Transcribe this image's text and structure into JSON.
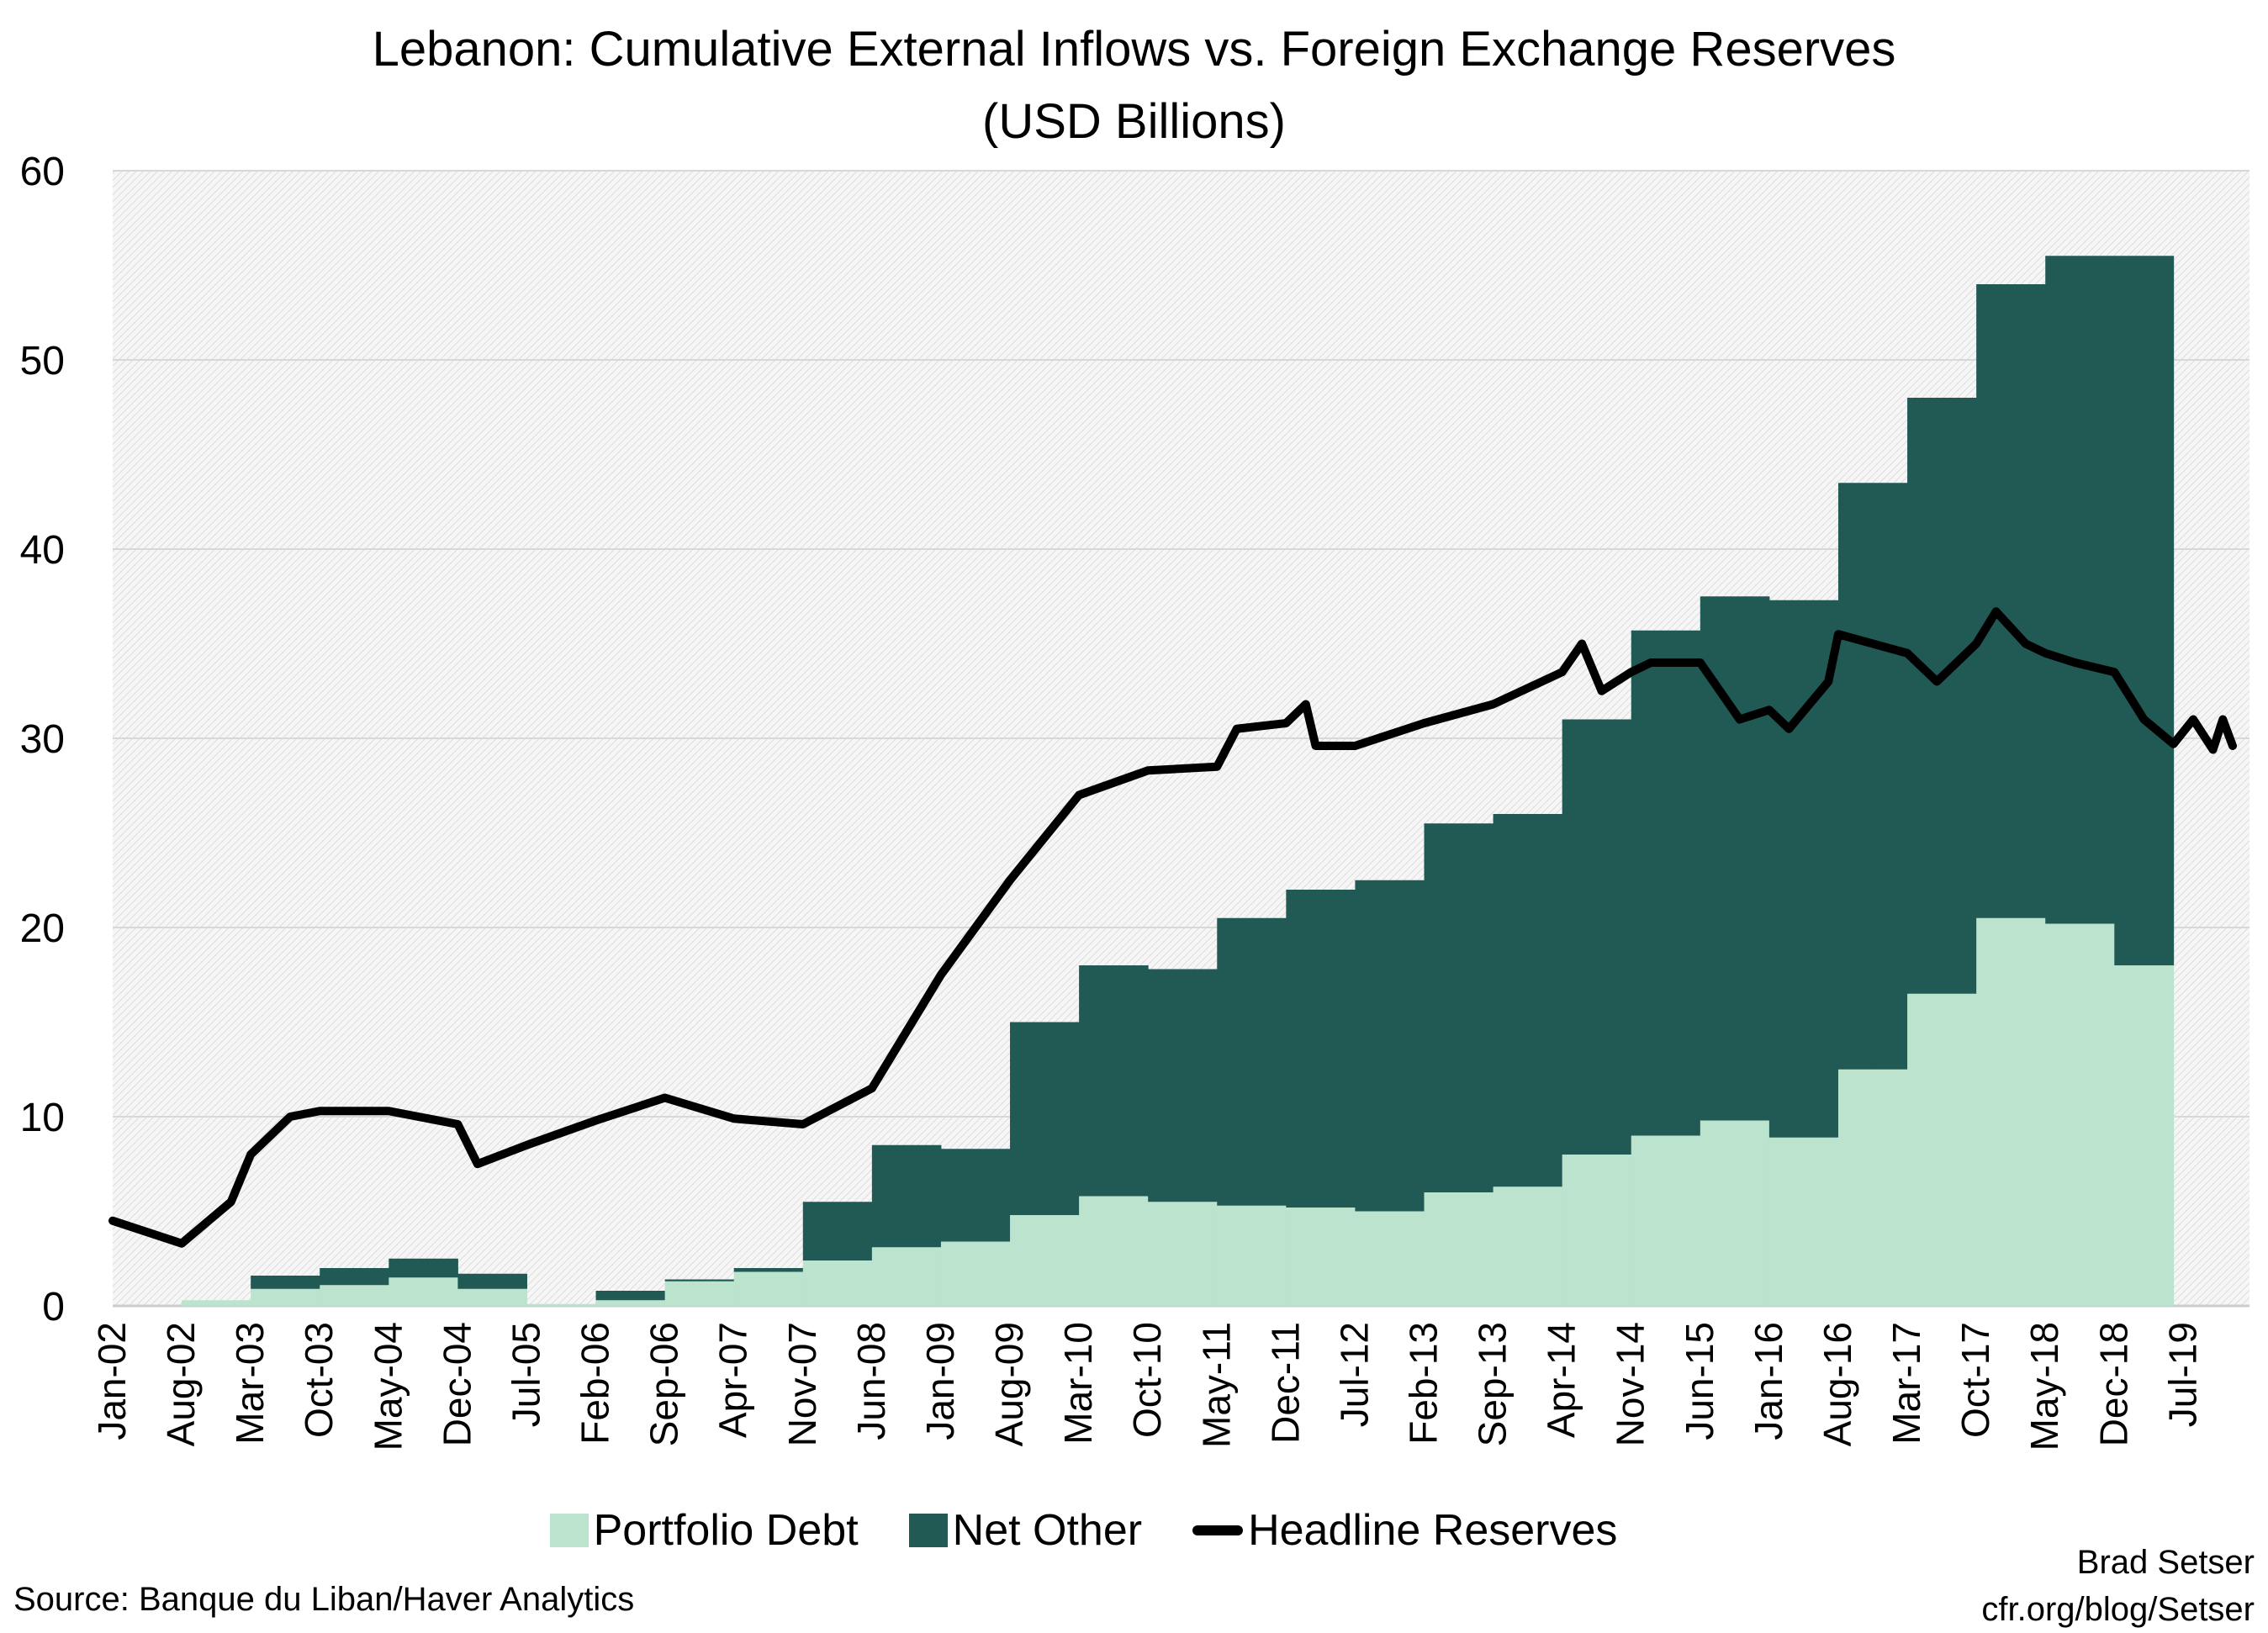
{
  "chart_data": {
    "type": "bar",
    "stacked": true,
    "title": "Lebanon: Cumulative External Inflows vs. Foreign Exchange Reserves",
    "subtitle": "(USD Billions)",
    "ylim": [
      0,
      60
    ],
    "yticks": [
      0,
      10,
      20,
      30,
      40,
      50,
      60
    ],
    "xlim": [
      "Jan-02",
      "Dec-19"
    ],
    "xticks": [
      "Jan-02",
      "Aug-02",
      "Mar-03",
      "Oct-03",
      "May-04",
      "Dec-04",
      "Jul-05",
      "Feb-06",
      "Sep-06",
      "Apr-07",
      "Nov-07",
      "Jun-08",
      "Jan-09",
      "Aug-09",
      "Mar-10",
      "Oct-10",
      "May-11",
      "Dec-11",
      "Jul-12",
      "Feb-13",
      "Sep-13",
      "Apr-14",
      "Nov-14",
      "Jun-15",
      "Jan-16",
      "Aug-16",
      "Mar-17",
      "Oct-17",
      "May-18",
      "Dec-18",
      "Jul-19"
    ],
    "grid": true,
    "legend_position": "bottom",
    "bar_dates": [
      "Jan-02",
      "Aug-02",
      "Mar-03",
      "Oct-03",
      "May-04",
      "Dec-04",
      "Jul-05",
      "Feb-06",
      "Sep-06",
      "Apr-07",
      "Nov-07",
      "Jun-08",
      "Jan-09",
      "Aug-09",
      "Mar-10",
      "Oct-10",
      "May-11",
      "Dec-11",
      "Jul-12",
      "Feb-13",
      "Sep-13",
      "Apr-14",
      "Nov-14",
      "Jun-15",
      "Jan-16",
      "Aug-16",
      "Mar-17",
      "Oct-17",
      "May-18",
      "Dec-18"
    ],
    "bar_end": "Jun-19",
    "series": [
      {
        "name": "Portfolio Debt",
        "kind": "bar",
        "color": "#bbe3cd",
        "values": [
          0,
          0.3,
          0.9,
          1.1,
          1.5,
          0.9,
          0.1,
          0.3,
          1.3,
          1.8,
          2.4,
          3.1,
          3.4,
          4.8,
          5.8,
          5.5,
          5.3,
          5.2,
          5.0,
          6.0,
          6.3,
          8.0,
          9.0,
          9.8,
          8.9,
          12.5,
          16.5,
          20.5,
          20.2,
          18.0
        ]
      },
      {
        "name": "Net Other",
        "kind": "bar",
        "color": "#215a55",
        "values": [
          0,
          0,
          0.7,
          0.9,
          1.0,
          0.8,
          0,
          0.5,
          0.1,
          0.2,
          3.1,
          5.4,
          4.9,
          10.2,
          12.2,
          12.3,
          15.2,
          16.8,
          17.5,
          19.5,
          19.7,
          23.0,
          26.7,
          27.7,
          28.4,
          31.0,
          31.5,
          33.5,
          35.3,
          37.5
        ]
      },
      {
        "name": "Headline Reserves",
        "kind": "line",
        "color": "#000000",
        "points": [
          [
            "Jan-02",
            4.5
          ],
          [
            "Aug-02",
            3.3
          ],
          [
            "Jan-03",
            5.5
          ],
          [
            "Mar-03",
            8.0
          ],
          [
            "Jul-03",
            10.0
          ],
          [
            "Oct-03",
            10.3
          ],
          [
            "May-04",
            10.3
          ],
          [
            "Dec-04",
            9.6
          ],
          [
            "Feb-05",
            7.5
          ],
          [
            "Jul-05",
            8.5
          ],
          [
            "Feb-06",
            9.8
          ],
          [
            "Sep-06",
            11.0
          ],
          [
            "Apr-07",
            9.9
          ],
          [
            "Nov-07",
            9.6
          ],
          [
            "Jun-08",
            11.5
          ],
          [
            "Jan-09",
            17.5
          ],
          [
            "Aug-09",
            22.5
          ],
          [
            "Mar-10",
            27.0
          ],
          [
            "Oct-10",
            28.3
          ],
          [
            "May-11",
            28.5
          ],
          [
            "Jul-11",
            30.5
          ],
          [
            "Dec-11",
            30.8
          ],
          [
            "Feb-12",
            31.8
          ],
          [
            "Mar-12",
            29.6
          ],
          [
            "Jul-12",
            29.6
          ],
          [
            "Feb-13",
            30.8
          ],
          [
            "Sep-13",
            31.8
          ],
          [
            "Apr-14",
            33.5
          ],
          [
            "Jun-14",
            35.0
          ],
          [
            "Aug-14",
            32.5
          ],
          [
            "Nov-14",
            33.5
          ],
          [
            "Jan-15",
            34.0
          ],
          [
            "Jun-15",
            34.0
          ],
          [
            "Oct-15",
            31.0
          ],
          [
            "Jan-16",
            31.5
          ],
          [
            "Mar-16",
            30.5
          ],
          [
            "Jul-16",
            33.0
          ],
          [
            "Aug-16",
            35.5
          ],
          [
            "Mar-17",
            34.5
          ],
          [
            "Jun-17",
            33.0
          ],
          [
            "Oct-17",
            35.0
          ],
          [
            "Dec-17",
            36.7
          ],
          [
            "Mar-18",
            35.0
          ],
          [
            "May-18",
            34.5
          ],
          [
            "Aug-18",
            34.0
          ],
          [
            "Dec-18",
            33.5
          ],
          [
            "Mar-19",
            31.0
          ],
          [
            "Jun-19",
            29.7
          ],
          [
            "Aug-19",
            31.0
          ],
          [
            "Oct-19",
            29.4
          ],
          [
            "Nov-19",
            31.0
          ],
          [
            "Dec-19",
            29.6
          ]
        ]
      }
    ]
  },
  "legend": {
    "items": [
      "Portfolio Debt",
      "Net Other",
      "Headline Reserves"
    ]
  },
  "source": "Source: Banque du Liban/Haver Analytics",
  "credit": {
    "author": "Brad Setser",
    "site": "cfr.org/blog/Setser"
  }
}
